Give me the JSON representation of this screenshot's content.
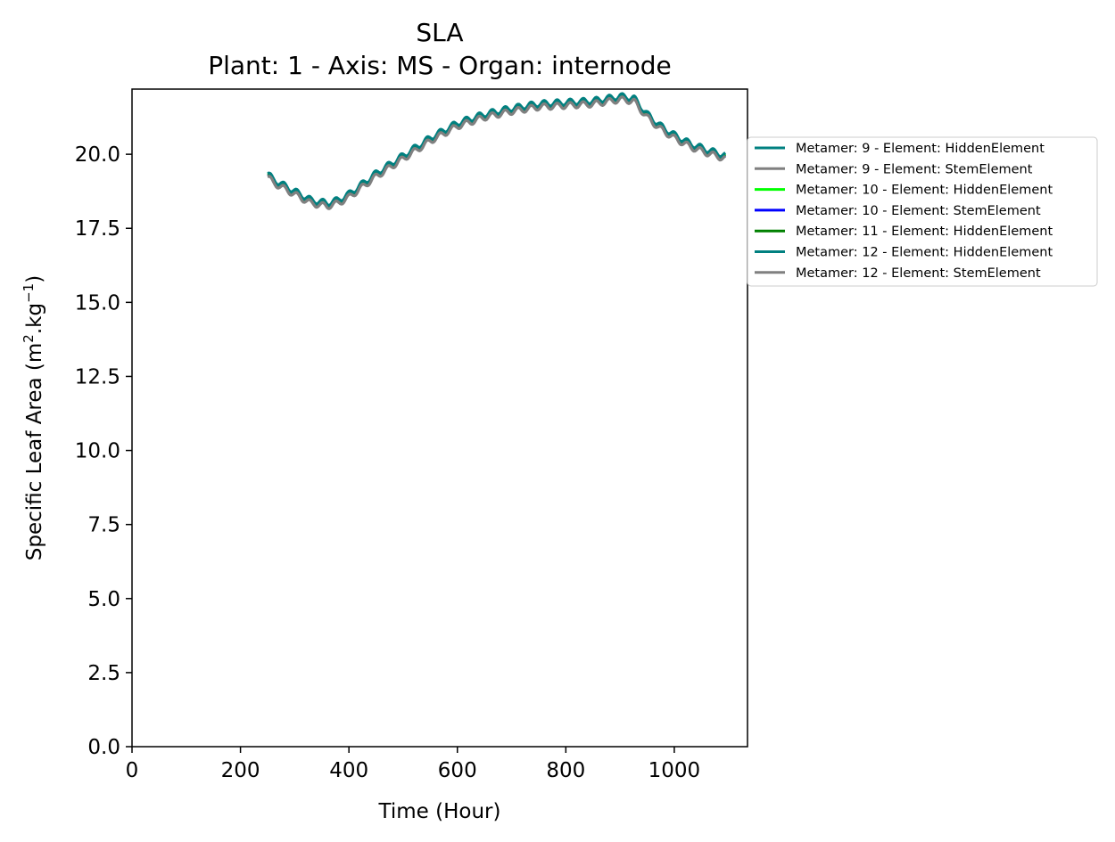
{
  "chart_data": {
    "type": "line",
    "title": "SLA",
    "subtitle": "Plant: 1 - Axis: MS - Organ: internode",
    "xlabel": "Time (Hour)",
    "ylabel_prefix": "Specific Leaf Area (m",
    "ylabel_sup1": "2",
    "ylabel_mid": ".kg",
    "ylabel_sup2": "−1",
    "ylabel_suffix": ")",
    "xlim": [
      0,
      1135
    ],
    "ylim": [
      0,
      22.2
    ],
    "xticks": [
      0,
      200,
      400,
      600,
      800,
      1000
    ],
    "xtick_labels": [
      "0",
      "200",
      "400",
      "600",
      "800",
      "1000"
    ],
    "yticks": [
      0,
      2.5,
      5,
      7.5,
      10,
      12.5,
      15,
      17.5,
      20
    ],
    "ytick_labels": [
      "0.0",
      "2.5",
      "5.0",
      "7.5",
      "10.0",
      "12.5",
      "15.0",
      "17.5",
      "20.0"
    ],
    "grid": false,
    "legend_position": "outside-right-top",
    "trend": {
      "x": [
        250,
        260,
        290,
        330,
        360,
        380,
        400,
        450,
        500,
        550,
        600,
        650,
        700,
        750,
        800,
        850,
        900,
        925,
        950,
        975,
        1000,
        1030,
        1060,
        1095
      ],
      "y": [
        19.3,
        19.1,
        18.8,
        18.4,
        18.3,
        18.4,
        18.6,
        19.3,
        19.9,
        20.5,
        21.0,
        21.3,
        21.5,
        21.65,
        21.7,
        21.75,
        21.9,
        21.85,
        21.3,
        20.9,
        20.6,
        20.3,
        20.1,
        19.9
      ]
    },
    "wave": {
      "amplitude": 0.1,
      "period_hours": 24
    },
    "series": [
      {
        "name": "Metamer: 9 - Element: HiddenElement",
        "color": "#008080",
        "offset": 0.06
      },
      {
        "name": "Metamer: 9 - Element: StemElement",
        "color": "#808080",
        "offset": -0.06
      },
      {
        "name": "Metamer: 10 - Element: HiddenElement",
        "color": "#00ff00",
        "offset": 0.03
      },
      {
        "name": "Metamer: 10 - Element: StemElement",
        "color": "#0000ff",
        "offset": -0.03
      },
      {
        "name": "Metamer: 11 - Element: HiddenElement",
        "color": "#008000",
        "offset": 0.0
      },
      {
        "name": "Metamer: 12 - Element: HiddenElement",
        "color": "#008080",
        "offset": 0.05
      },
      {
        "name": "Metamer: 12 - Element: StemElement",
        "color": "#808080",
        "offset": -0.05
      }
    ]
  }
}
